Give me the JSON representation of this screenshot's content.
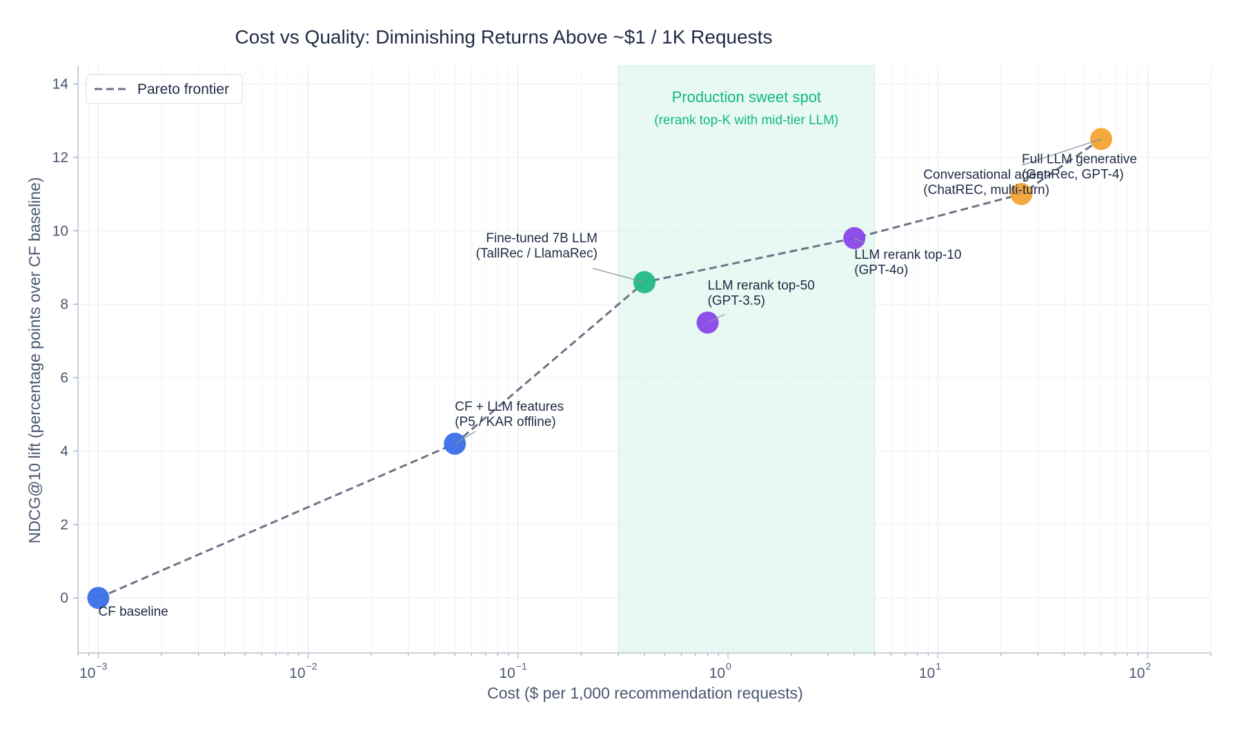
{
  "chart_data": {
    "type": "scatter",
    "title": "Cost vs Quality:  Diminishing Returns Above ~$1 / 1K Requests",
    "xlabel": "Cost  ($ per 1,000 recommendation requests)",
    "ylabel": "NDCG@10 lift  (percentage points over CF baseline)",
    "xscale": "log",
    "xlim": [
      0.0008,
      200
    ],
    "ylim": [
      -1.5,
      14.5
    ],
    "x_ticks": [
      {
        "value": 0.001,
        "base": "10",
        "exp": "−3"
      },
      {
        "value": 0.01,
        "base": "10",
        "exp": "−2"
      },
      {
        "value": 0.1,
        "base": "10",
        "exp": "−1"
      },
      {
        "value": 1,
        "base": "10",
        "exp": "0"
      },
      {
        "value": 10,
        "base": "10",
        "exp": "1"
      },
      {
        "value": 100,
        "base": "10",
        "exp": "2"
      }
    ],
    "y_ticks": [
      0,
      2,
      4,
      6,
      8,
      10,
      12,
      14
    ],
    "grid": true,
    "legend": {
      "position": "top-left",
      "entries": [
        "Pareto frontier"
      ]
    },
    "points": [
      {
        "x": 0.001,
        "y": 0.0,
        "color": "#3b6fe8",
        "label": [
          "CF baseline"
        ]
      },
      {
        "x": 0.05,
        "y": 4.2,
        "color": "#3b6fe8",
        "label": [
          "CF + LLM features",
          "(P5 / KAR offline)"
        ]
      },
      {
        "x": 0.4,
        "y": 8.6,
        "color": "#22b984",
        "label": [
          "Fine-tuned 7B LLM",
          "(TallRec / LlamaRec)"
        ]
      },
      {
        "x": 0.8,
        "y": 7.5,
        "color": "#8a46e8",
        "label": [
          "LLM rerank top-50",
          "(GPT-3.5)"
        ]
      },
      {
        "x": 4,
        "y": 9.8,
        "color": "#8a46e8",
        "label": [
          "LLM rerank top-10",
          "(GPT-4o)"
        ]
      },
      {
        "x": 25,
        "y": 11.0,
        "color": "#f2a431",
        "label": [
          "Conversational agent",
          "(ChatREC, multi-turn)"
        ]
      },
      {
        "x": 60,
        "y": 12.5,
        "color": "#f2a431",
        "label": [
          "Full LLM generative",
          "(GenRec, GPT-4)"
        ]
      }
    ],
    "series": [
      {
        "name": "Pareto frontier",
        "style": "dashed",
        "color": "#6b7385",
        "x": [
          0.001,
          0.05,
          0.4,
          4,
          25,
          60
        ],
        "y": [
          0.0,
          4.2,
          8.6,
          9.8,
          11.0,
          12.5
        ]
      }
    ],
    "annotations": [
      {
        "type": "band",
        "x_range": [
          0.3,
          5
        ],
        "color": "#d9f5ea",
        "title": "Production sweet spot",
        "subtitle": "(rerank top-K with mid-tier LLM)"
      }
    ]
  }
}
